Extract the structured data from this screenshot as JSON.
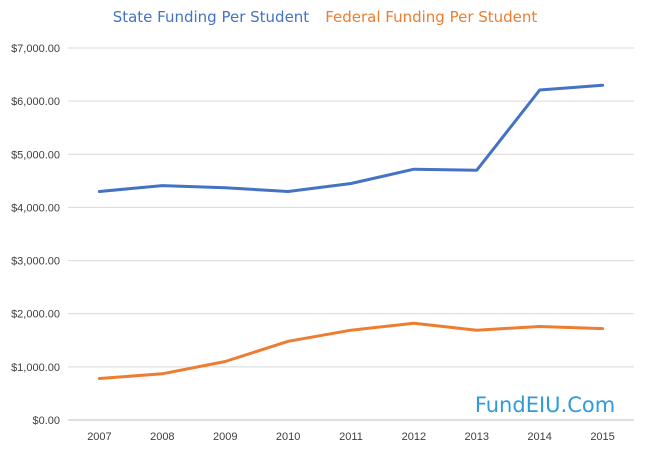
{
  "chart_data": {
    "type": "line",
    "categories": [
      "2007",
      "2008",
      "2009",
      "2010",
      "2011",
      "2012",
      "2013",
      "2014",
      "2015"
    ],
    "series": [
      {
        "name": "State Funding Per Student",
        "color": "#4472C4",
        "values": [
          4300,
          4410,
          4370,
          4300,
          4450,
          4720,
          4700,
          6210,
          6300
        ]
      },
      {
        "name": "Federal Funding Per Student",
        "color": "#ED7D31",
        "values": [
          780,
          870,
          1100,
          1480,
          1690,
          1820,
          1690,
          1760,
          1720
        ]
      }
    ],
    "ylim": [
      0,
      7000
    ],
    "y_ticks": [
      "$0.00",
      "$1,000.00",
      "$2,000.00",
      "$3,000.00",
      "$4,000.00",
      "$5,000.00",
      "$6,000.00",
      "$7,000.00"
    ],
    "grid": true,
    "legend_position": "top"
  },
  "watermark": {
    "text": "FundEIU.Com",
    "color": "#2E9BDB"
  },
  "colors": {
    "grid": "#D9D9D9",
    "axis": "#BFBFBF",
    "tick_text": "#404040"
  }
}
